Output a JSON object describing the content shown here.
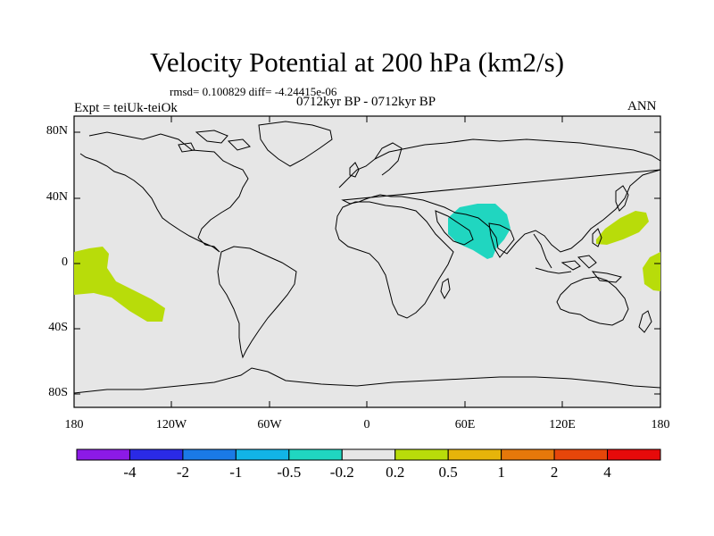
{
  "title": "Velocity Potential at 200 hPa (km2/s)",
  "stats_line": "rmsd= 0.100829 diff= -4.24415e-06",
  "experiment_label": "Expt = teiUk-teiOk",
  "period_label": "0712kyr BP - 0712kyr BP",
  "season_label": "ANN",
  "lat_ticks": [
    "80N",
    "40N",
    "0",
    "40S",
    "80S"
  ],
  "lon_ticks": [
    "180",
    "120W",
    "60W",
    "0",
    "60E",
    "120E",
    "180"
  ],
  "colorbar": {
    "labels": [
      "-4",
      "-2",
      "-1",
      "-0.5",
      "-0.2",
      "0.2",
      "0.5",
      "1",
      "2",
      "4"
    ],
    "colors": [
      "#8c1ae6",
      "#2a2ae6",
      "#1a7ae6",
      "#12b4e6",
      "#20d6c0",
      "#e6e6e6",
      "#b8dc0a",
      "#e6b40a",
      "#e6780a",
      "#e6460a",
      "#e60a0a"
    ]
  },
  "colors": {
    "ocean_land_fill": "#e6e6e6",
    "positive_anomaly": "#b8dc0a",
    "negative_anomaly": "#20d6c0",
    "coastline": "#000000"
  }
}
